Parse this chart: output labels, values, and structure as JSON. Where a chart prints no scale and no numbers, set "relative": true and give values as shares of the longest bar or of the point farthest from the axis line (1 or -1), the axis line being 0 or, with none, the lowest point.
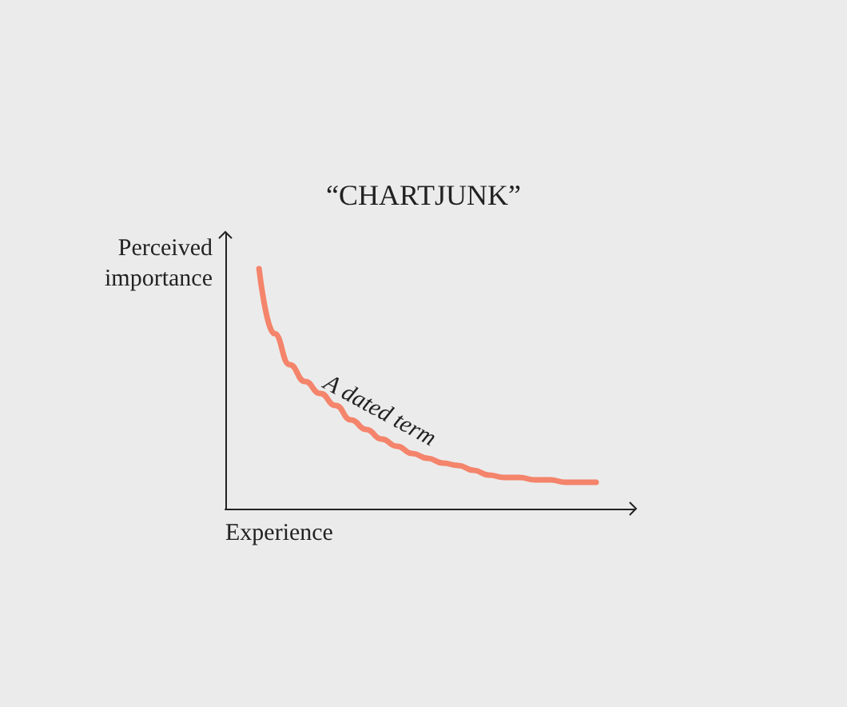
{
  "chart_data": {
    "type": "line",
    "title": "“CHARTJUNK”",
    "xlabel": "Experience",
    "ylabel": "Perceived importance",
    "relative": true,
    "categories": [
      null,
      null,
      null,
      null,
      null,
      null,
      null,
      null,
      null,
      null,
      null,
      null,
      null,
      null,
      null,
      null,
      null,
      null,
      null,
      null,
      null,
      null,
      null
    ],
    "series": [
      {
        "color": "#f4846b",
        "values": [
          1,
          0.73,
          0.6,
          0.53,
          0.48,
          0.43,
          0.37,
          0.33,
          0.29,
          0.26,
          0.23,
          0.21,
          0.19,
          0.18,
          0.16,
          0.14,
          0.13,
          0.13,
          0.12,
          0.12,
          0.11,
          0.11,
          0.11
        ]
      }
    ],
    "annotations": [
      "A dated term"
    ],
    "grid": false,
    "marker": "none",
    "line_style": "solid"
  }
}
